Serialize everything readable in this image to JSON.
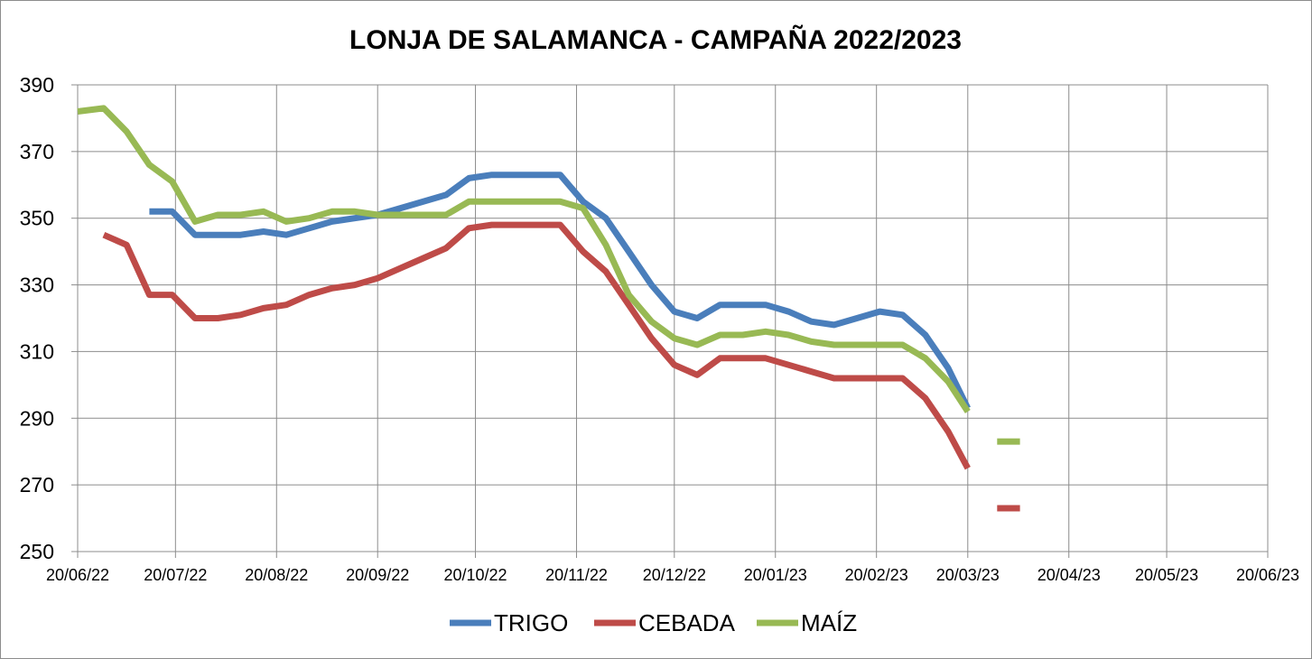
{
  "chart_data": {
    "type": "line",
    "title": "LONJA DE SALAMANCA - CAMPAÑA 2022/2023",
    "xlabel": "",
    "ylabel": "",
    "x_ticks": [
      "20/06/22",
      "20/07/22",
      "20/08/22",
      "20/09/22",
      "20/10/22",
      "20/11/22",
      "20/12/22",
      "20/01/23",
      "20/02/23",
      "20/03/23",
      "20/04/23",
      "20/05/23",
      "20/06/23"
    ],
    "y_ticks": [
      "250",
      "270",
      "290",
      "310",
      "330",
      "350",
      "370",
      "390"
    ],
    "ylim": [
      250,
      390
    ],
    "xlim": [
      "2022-06-20",
      "2023-06-20"
    ],
    "grid": true,
    "legend_position": "bottom",
    "series": [
      {
        "name": "TRIGO",
        "color": "#4a7ebb",
        "points": [
          [
            "2022-07-12",
            352
          ],
          [
            "2022-07-19",
            352
          ],
          [
            "2022-07-26",
            345
          ],
          [
            "2022-08-02",
            345
          ],
          [
            "2022-08-09",
            345
          ],
          [
            "2022-08-16",
            346
          ],
          [
            "2022-08-23",
            345
          ],
          [
            "2022-08-30",
            347
          ],
          [
            "2022-09-06",
            349
          ],
          [
            "2022-09-13",
            350
          ],
          [
            "2022-09-20",
            351
          ],
          [
            "2022-09-27",
            353
          ],
          [
            "2022-10-04",
            355
          ],
          [
            "2022-10-11",
            357
          ],
          [
            "2022-10-18",
            362
          ],
          [
            "2022-10-25",
            363
          ],
          [
            "2022-11-01",
            363
          ],
          [
            "2022-11-08",
            363
          ],
          [
            "2022-11-15",
            363
          ],
          [
            "2022-11-22",
            355
          ],
          [
            "2022-11-29",
            350
          ],
          [
            "2022-12-06",
            340
          ],
          [
            "2022-12-13",
            330
          ],
          [
            "2022-12-20",
            322
          ],
          [
            "2022-12-27",
            320
          ],
          [
            "2023-01-03",
            324
          ],
          [
            "2023-01-10",
            324
          ],
          [
            "2023-01-17",
            324
          ],
          [
            "2023-01-24",
            322
          ],
          [
            "2023-01-31",
            319
          ],
          [
            "2023-02-07",
            318
          ],
          [
            "2023-02-14",
            320
          ],
          [
            "2023-02-21",
            322
          ],
          [
            "2023-02-28",
            321
          ],
          [
            "2023-03-07",
            315
          ],
          [
            "2023-03-14",
            305
          ],
          [
            "2023-03-20",
            293
          ]
        ]
      },
      {
        "name": "CEBADA",
        "color": "#be4b48",
        "points": [
          [
            "2022-06-28",
            345
          ],
          [
            "2022-07-05",
            342
          ],
          [
            "2022-07-12",
            327
          ],
          [
            "2022-07-19",
            327
          ],
          [
            "2022-07-26",
            320
          ],
          [
            "2022-08-02",
            320
          ],
          [
            "2022-08-09",
            321
          ],
          [
            "2022-08-16",
            323
          ],
          [
            "2022-08-23",
            324
          ],
          [
            "2022-08-30",
            327
          ],
          [
            "2022-09-06",
            329
          ],
          [
            "2022-09-13",
            330
          ],
          [
            "2022-09-20",
            332
          ],
          [
            "2022-09-27",
            335
          ],
          [
            "2022-10-04",
            338
          ],
          [
            "2022-10-11",
            341
          ],
          [
            "2022-10-18",
            347
          ],
          [
            "2022-10-25",
            348
          ],
          [
            "2022-11-01",
            348
          ],
          [
            "2022-11-08",
            348
          ],
          [
            "2022-11-15",
            348
          ],
          [
            "2022-11-22",
            340
          ],
          [
            "2022-11-29",
            334
          ],
          [
            "2022-12-06",
            324
          ],
          [
            "2022-12-13",
            314
          ],
          [
            "2022-12-20",
            306
          ],
          [
            "2022-12-27",
            303
          ],
          [
            "2023-01-03",
            308
          ],
          [
            "2023-01-10",
            308
          ],
          [
            "2023-01-17",
            308
          ],
          [
            "2023-01-24",
            306
          ],
          [
            "2023-01-31",
            304
          ],
          [
            "2023-02-07",
            302
          ],
          [
            "2023-02-14",
            302
          ],
          [
            "2023-02-21",
            302
          ],
          [
            "2023-02-28",
            302
          ],
          [
            "2023-03-07",
            296
          ],
          [
            "2023-03-14",
            286
          ],
          [
            "2023-03-20",
            275
          ]
        ],
        "extra_segment": [
          [
            "2023-03-29",
            263
          ],
          [
            "2023-04-05",
            263
          ]
        ]
      },
      {
        "name": "MAÍZ",
        "color": "#98b954",
        "points": [
          [
            "2022-06-20",
            382
          ],
          [
            "2022-06-28",
            383
          ],
          [
            "2022-07-05",
            376
          ],
          [
            "2022-07-12",
            366
          ],
          [
            "2022-07-19",
            361
          ],
          [
            "2022-07-26",
            349
          ],
          [
            "2022-08-02",
            351
          ],
          [
            "2022-08-09",
            351
          ],
          [
            "2022-08-16",
            352
          ],
          [
            "2022-08-23",
            349
          ],
          [
            "2022-08-30",
            350
          ],
          [
            "2022-09-06",
            352
          ],
          [
            "2022-09-13",
            352
          ],
          [
            "2022-09-20",
            351
          ],
          [
            "2022-09-27",
            351
          ],
          [
            "2022-10-04",
            351
          ],
          [
            "2022-10-11",
            351
          ],
          [
            "2022-10-18",
            355
          ],
          [
            "2022-10-25",
            355
          ],
          [
            "2022-11-01",
            355
          ],
          [
            "2022-11-08",
            355
          ],
          [
            "2022-11-15",
            355
          ],
          [
            "2022-11-22",
            353
          ],
          [
            "2022-11-29",
            342
          ],
          [
            "2022-12-06",
            327
          ],
          [
            "2022-12-13",
            319
          ],
          [
            "2022-12-20",
            314
          ],
          [
            "2022-12-27",
            312
          ],
          [
            "2023-01-03",
            315
          ],
          [
            "2023-01-10",
            315
          ],
          [
            "2023-01-17",
            316
          ],
          [
            "2023-01-24",
            315
          ],
          [
            "2023-01-31",
            313
          ],
          [
            "2023-02-07",
            312
          ],
          [
            "2023-02-14",
            312
          ],
          [
            "2023-02-21",
            312
          ],
          [
            "2023-02-28",
            312
          ],
          [
            "2023-03-07",
            308
          ],
          [
            "2023-03-14",
            301
          ],
          [
            "2023-03-20",
            292
          ]
        ],
        "extra_segment": [
          [
            "2023-03-29",
            283
          ],
          [
            "2023-04-05",
            283
          ]
        ]
      }
    ]
  }
}
